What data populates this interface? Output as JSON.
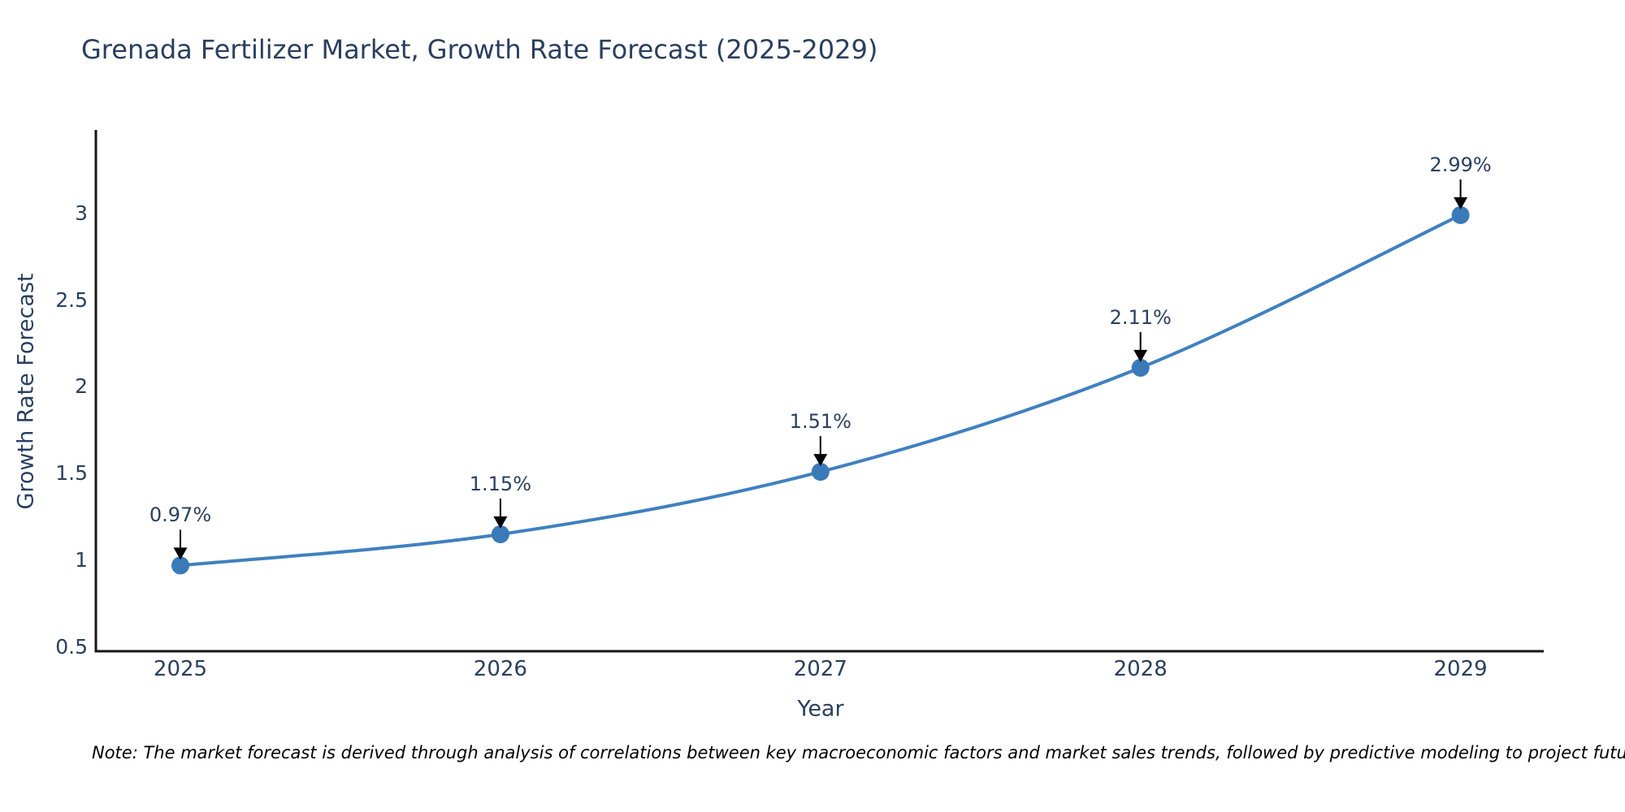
{
  "note": "Note: The market forecast is derived through analysis of correlations between key macroeconomic factors and market sales trends, followed by predictive modeling to project future sales",
  "chart_data": {
    "type": "line",
    "title": "Grenada Fertilizer Market, Growth Rate Forecast (2025-2029)",
    "xlabel": "Year",
    "ylabel": "Growth Rate Forecast",
    "x": [
      2025,
      2026,
      2027,
      2028,
      2029
    ],
    "series": [
      {
        "name": "Growth Rate Forecast",
        "values": [
          0.97,
          1.15,
          1.51,
          2.11,
          2.99
        ]
      }
    ],
    "point_labels": [
      "0.97%",
      "1.15%",
      "1.51%",
      "2.11%",
      "2.99%"
    ],
    "xtick_labels": [
      "2025",
      "2026",
      "2027",
      "2028",
      "2029"
    ],
    "ytick_labels": [
      "0.5",
      "1",
      "1.5",
      "2",
      "2.5",
      "3"
    ],
    "ytick_values": [
      0.5,
      1,
      1.5,
      2,
      2.5,
      3
    ],
    "xlim": [
      2024.74,
      2029.26
    ],
    "ylim": [
      0.48,
      3.47
    ],
    "grid": false,
    "legend": "none",
    "line_shape": "spline",
    "annotations_have_arrows": true,
    "colors": {
      "line": "#3f80c0",
      "marker": "#3a7ab9",
      "arrow": "#000000",
      "text": "#2a3f5f",
      "axis": "#161616",
      "note_text": "#000000",
      "background": "#ffffff"
    }
  }
}
